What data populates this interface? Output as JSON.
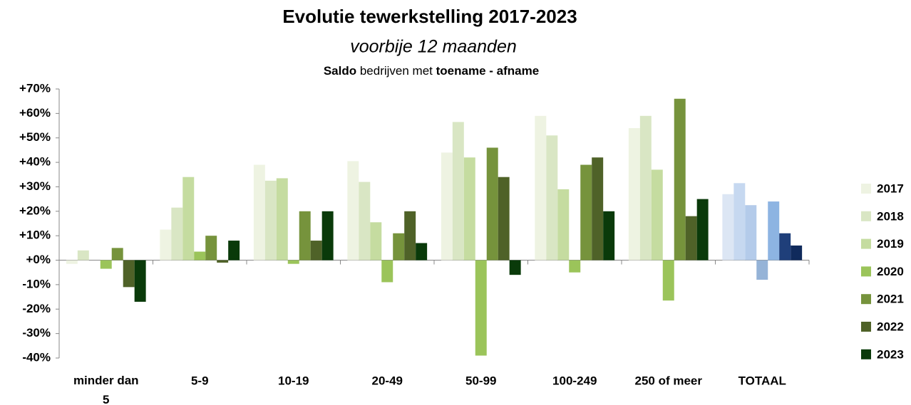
{
  "chart_data": {
    "type": "bar",
    "title": "Evolutie tewerkstelling 2017-2023",
    "subtitle": "voorbije 12 maanden",
    "note": [
      "Saldo",
      "bedrijven met",
      "toename - afname"
    ],
    "categories": [
      "minder dan 5",
      "5-9",
      "10-19",
      "20-49",
      "50-99",
      "100-249",
      "250 of meer",
      "TOTAAL"
    ],
    "series": [
      {
        "name": "2017",
        "color": "#eef3e2",
        "colors": [
          "#eef3e2",
          "#eef3e2",
          "#eef3e2",
          "#eef3e2",
          "#eef3e2",
          "#eef3e2",
          "#eef3e2",
          "#dce6f4"
        ],
        "values": [
          -1.5,
          12.5,
          39,
          40.5,
          44,
          59,
          54,
          27
        ]
      },
      {
        "name": "2018",
        "color": "#d9e6c4",
        "colors": [
          "#d9e6c4",
          "#d9e6c4",
          "#d9e6c4",
          "#d9e6c4",
          "#d9e6c4",
          "#d9e6c4",
          "#d9e6c4",
          "#c6d8f0"
        ],
        "values": [
          4,
          21.5,
          32.5,
          32,
          56.5,
          51,
          59,
          31.5
        ]
      },
      {
        "name": "2019",
        "color": "#c5dca0",
        "colors": [
          "#c5dca0",
          "#c5dca0",
          "#c5dca0",
          "#c5dca0",
          "#c5dca0",
          "#c5dca0",
          "#c5dca0",
          "#b4cbea"
        ],
        "values": [
          0,
          34,
          33.5,
          15.5,
          42,
          29,
          37,
          22.5
        ]
      },
      {
        "name": "2020",
        "color": "#9bc45a",
        "colors": [
          "#9bc45a",
          "#9bc45a",
          "#9bc45a",
          "#9bc45a",
          "#9bc45a",
          "#9bc45a",
          "#9bc45a",
          "#95b3d7"
        ],
        "values": [
          -3.5,
          3.5,
          -1.5,
          -9,
          -39,
          -5,
          -16.5,
          -8
        ]
      },
      {
        "name": "2021",
        "color": "#76933c",
        "colors": [
          "#76933c",
          "#76933c",
          "#76933c",
          "#76933c",
          "#76933c",
          "#76933c",
          "#76933c",
          "#8db4e2"
        ],
        "values": [
          5,
          10,
          20,
          11,
          46,
          39,
          66,
          24
        ]
      },
      {
        "name": "2022",
        "color": "#4f6228",
        "colors": [
          "#4f6228",
          "#4f6228",
          "#4f6228",
          "#4f6228",
          "#4f6228",
          "#4f6228",
          "#4f6228",
          "#1f3f7a"
        ],
        "values": [
          -11,
          -1,
          8,
          20,
          34,
          42,
          18,
          11
        ]
      },
      {
        "name": "2023",
        "color": "#0a3a0a",
        "colors": [
          "#0a3a0a",
          "#0a3a0a",
          "#0a3a0a",
          "#0a3a0a",
          "#0a3a0a",
          "#0a3a0a",
          "#0a3a0a",
          "#102a5c"
        ],
        "values": [
          -17,
          8,
          20,
          7,
          -6,
          20,
          25,
          6
        ]
      }
    ],
    "ylim": [
      -40,
      70
    ],
    "yticks": [
      {
        "value": -40,
        "label": "-40%"
      },
      {
        "value": -30,
        "label": "-30%"
      },
      {
        "value": -20,
        "label": "-20%"
      },
      {
        "value": -10,
        "label": "-10%"
      },
      {
        "value": 0,
        "label": "+0%"
      },
      {
        "value": 10,
        "label": "+10%"
      },
      {
        "value": 20,
        "label": "+20%"
      },
      {
        "value": 30,
        "label": "+30%"
      },
      {
        "value": 40,
        "label": "+40%"
      },
      {
        "value": 50,
        "label": "+50%"
      },
      {
        "value": 60,
        "label": "+60%"
      },
      {
        "value": 70,
        "label": "+70%"
      }
    ],
    "grid": false,
    "legend": "right"
  }
}
